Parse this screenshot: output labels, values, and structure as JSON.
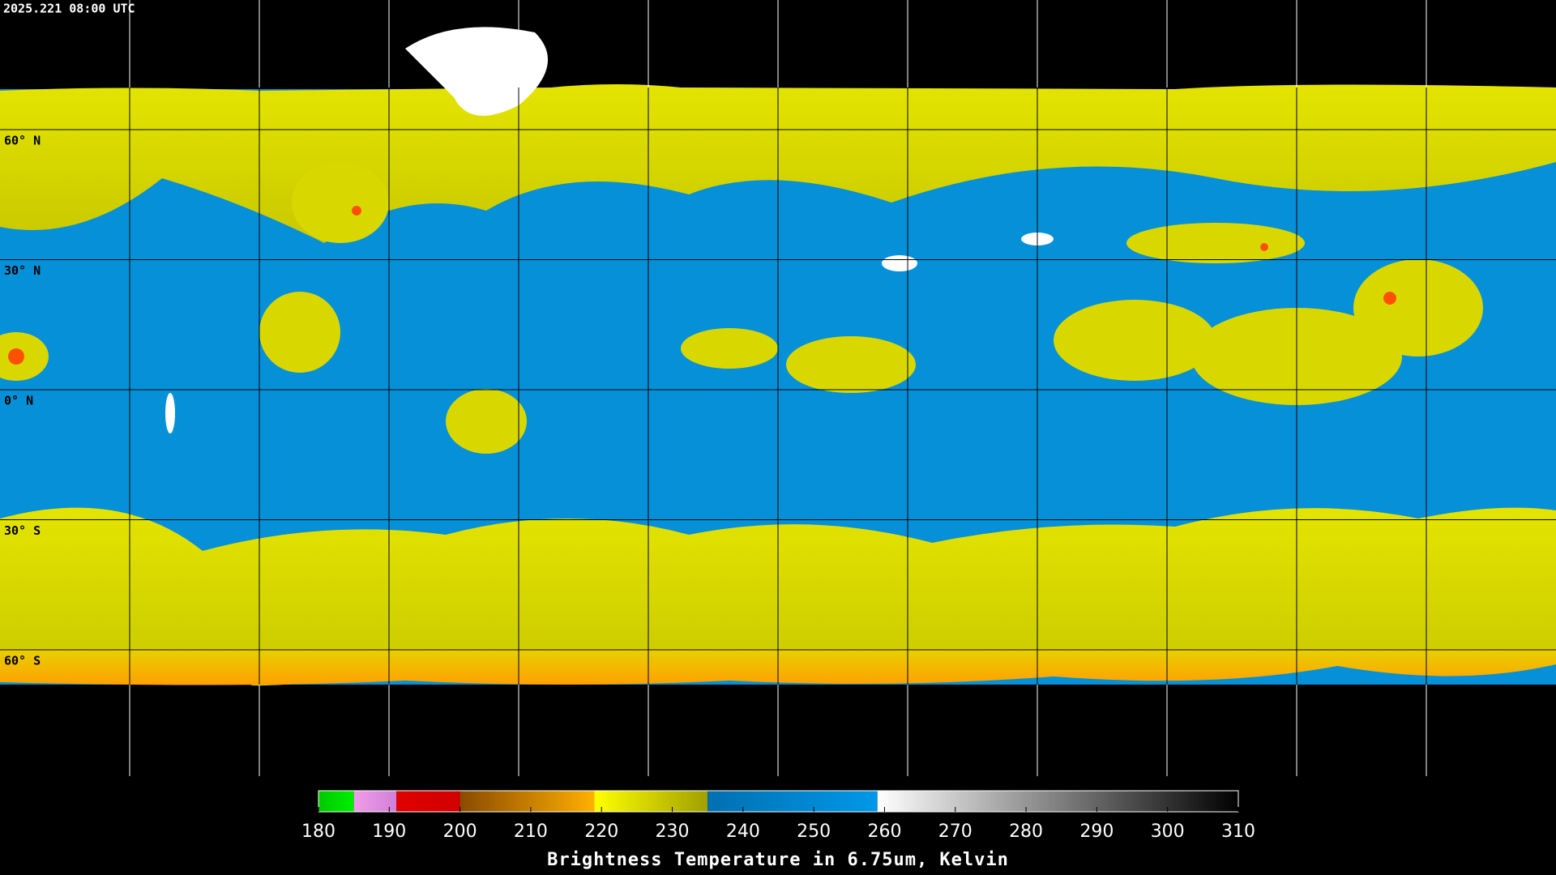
{
  "timestamp": "2025.221 08:00 UTC",
  "latitude_labels": [
    "60° N",
    "30° N",
    "0° N",
    "30° S",
    "60° S"
  ],
  "colorbar": {
    "title": "Brightness Temperature in 6.75um, Kelvin",
    "xlim": [
      180,
      310
    ],
    "xticks": [
      180,
      190,
      200,
      210,
      220,
      230,
      240,
      250,
      260,
      270,
      280,
      290,
      300,
      310
    ],
    "segments": [
      {
        "from": 180,
        "to": 185,
        "colors": [
          "#00c800",
          "#00f000"
        ]
      },
      {
        "from": 185,
        "to": 191,
        "colors": [
          "#f09ce8",
          "#d080d8"
        ]
      },
      {
        "from": 191,
        "to": 200,
        "colors": [
          "#e00000",
          "#d00000"
        ]
      },
      {
        "from": 200,
        "to": 219,
        "colors": [
          "#8a4a00",
          "#ffb000"
        ]
      },
      {
        "from": 219,
        "to": 235,
        "colors": [
          "#ffff00",
          "#a0a000"
        ]
      },
      {
        "from": 235,
        "to": 259,
        "colors": [
          "#0070b0",
          "#0098e8"
        ]
      },
      {
        "from": 259,
        "to": 310,
        "colors": [
          "#ffffff",
          "#000000"
        ]
      }
    ]
  }
}
